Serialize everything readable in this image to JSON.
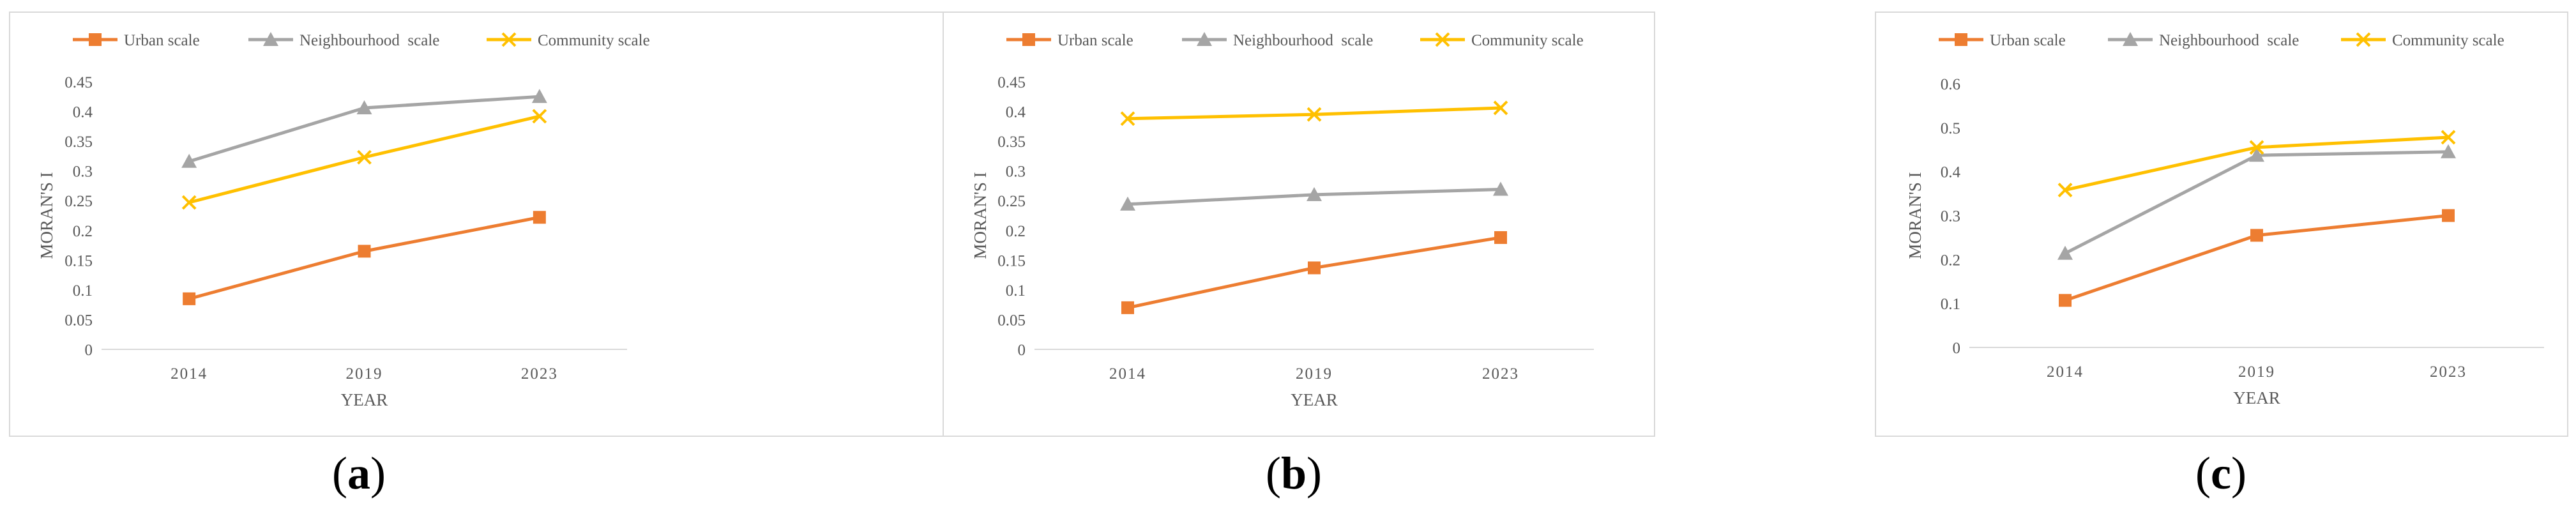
{
  "colors": {
    "urban": "#ED7D31",
    "neighbourhood": "#A5A5A5",
    "community": "#FFC000",
    "axis": "#D9D9D9",
    "text": "#595959",
    "frame": "#D9D9D9"
  },
  "chart_data": [
    {
      "type": "line",
      "caption": {
        "open": "(",
        "letter": "a",
        "close": ")"
      },
      "categories": [
        "2014",
        "2019",
        "2023"
      ],
      "xlabel": "YEAR",
      "ylabel": "MORAN'S I",
      "ylim": [
        0,
        0.45
      ],
      "yticks": [
        0,
        0.05,
        0.1,
        0.15,
        0.2,
        0.25,
        0.3,
        0.35,
        0.4,
        0.45
      ],
      "ytick_labels": [
        "0",
        "0.05",
        "0.1",
        "0.15",
        "0.2",
        "0.25",
        "0.3",
        "0.35",
        "0.4",
        "0.45"
      ],
      "grid": false,
      "legend": "top",
      "series": [
        {
          "name": "Urban scale",
          "key": "urban",
          "marker": "square",
          "values": [
            0.085,
            0.165,
            0.222
          ]
        },
        {
          "name": "Neighbourhood  scale",
          "key": "neighbourhood",
          "marker": "triangle",
          "values": [
            0.316,
            0.406,
            0.425
          ]
        },
        {
          "name": "Community scale",
          "key": "community",
          "marker": "x",
          "values": [
            0.247,
            0.323,
            0.392
          ]
        }
      ]
    },
    {
      "type": "line",
      "caption": {
        "open": "(",
        "letter": "b",
        "close": ")"
      },
      "categories": [
        "2014",
        "2019",
        "2023"
      ],
      "xlabel": "YEAR",
      "ylabel": "MORAN'S I",
      "ylim": [
        0,
        0.45
      ],
      "yticks": [
        0,
        0.05,
        0.1,
        0.15,
        0.2,
        0.25,
        0.3,
        0.35,
        0.4,
        0.45
      ],
      "ytick_labels": [
        "0",
        "0.05",
        "0.1",
        "0.15",
        "0.2",
        "0.25",
        "0.3",
        "0.35",
        "0.4",
        "0.45"
      ],
      "grid": false,
      "legend": "top",
      "series": [
        {
          "name": "Urban scale",
          "key": "urban",
          "marker": "square",
          "values": [
            0.07,
            0.137,
            0.188
          ]
        },
        {
          "name": "Neighbourhood  scale",
          "key": "neighbourhood",
          "marker": "triangle",
          "values": [
            0.244,
            0.26,
            0.269
          ]
        },
        {
          "name": "Community scale",
          "key": "community",
          "marker": "x",
          "values": [
            0.388,
            0.395,
            0.406
          ]
        }
      ]
    },
    {
      "type": "line",
      "caption": {
        "open": "(",
        "letter": "c",
        "close": ")"
      },
      "categories": [
        "2014",
        "2019",
        "2023"
      ],
      "xlabel": "YEAR",
      "ylabel": "MORAN'S I",
      "ylim": [
        0,
        0.6
      ],
      "yticks": [
        0,
        0.1,
        0.2,
        0.3,
        0.4,
        0.5,
        0.6
      ],
      "ytick_labels": [
        "0",
        "0.1",
        "0.2",
        "0.3",
        "0.4",
        "0.5",
        "0.6"
      ],
      "grid": false,
      "legend": "top",
      "series": [
        {
          "name": "Urban scale",
          "key": "urban",
          "marker": "square",
          "values": [
            0.107,
            0.255,
            0.3
          ]
        },
        {
          "name": "Neighbourhood  scale",
          "key": "neighbourhood",
          "marker": "triangle",
          "values": [
            0.214,
            0.437,
            0.445
          ]
        },
        {
          "name": "Community scale",
          "key": "community",
          "marker": "x",
          "values": [
            0.358,
            0.455,
            0.478
          ]
        }
      ]
    }
  ]
}
